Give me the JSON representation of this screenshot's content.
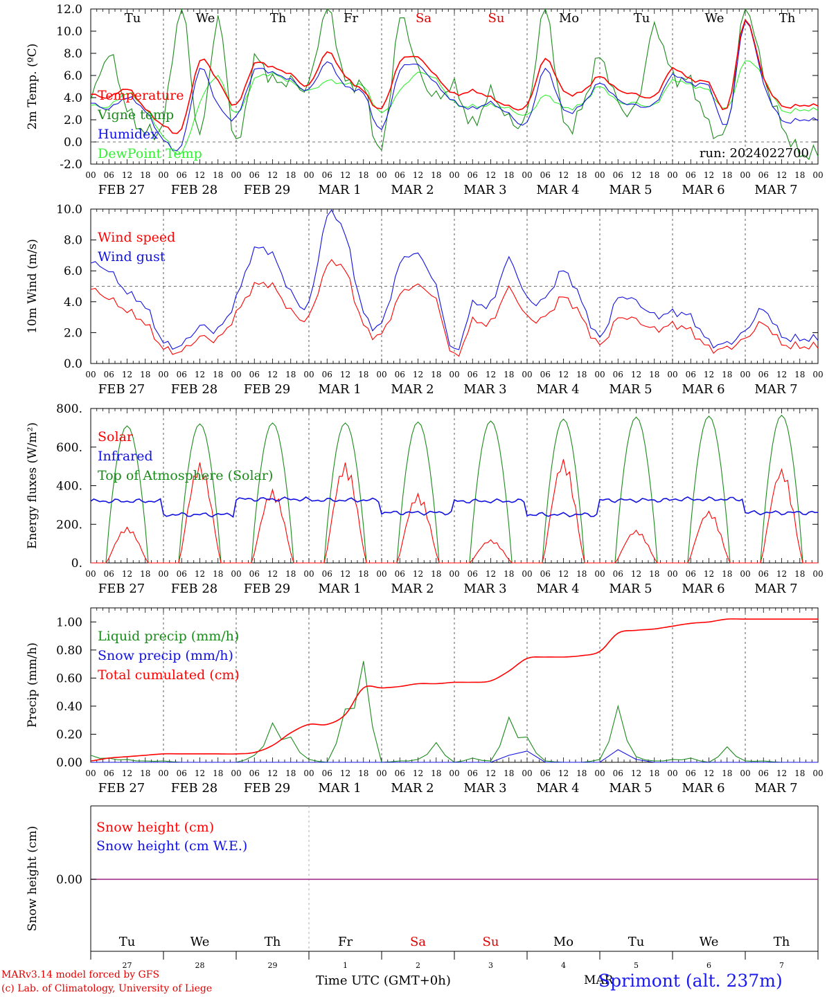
{
  "station_label": "Sprimont (alt. 237m)",
  "run_label": "run: 2024022700",
  "credit_line1": "MARv3.14 model forced by GFS",
  "credit_line2": "(c) Lab. of Climatology, University of Liege",
  "xaxis_title": "Time UTC (GMT+0h)",
  "footer_month": "MAR",
  "hour_ticks": [
    "00",
    "06",
    "12",
    "18"
  ],
  "day_labels": [
    "FEB 27",
    "FEB 28",
    "FEB 29",
    "MAR  1",
    "MAR  2",
    "MAR  3",
    "MAR  4",
    "MAR  5",
    "MAR  6",
    "MAR  7"
  ],
  "weekdays": [
    "Tu",
    "We",
    "Th",
    "Fr",
    "Sa",
    "Su",
    "Mo",
    "Tu",
    "We",
    "Th"
  ],
  "weekday_colors": [
    "#000000",
    "#000000",
    "#000000",
    "#000000",
    "#e00000",
    "#e00000",
    "#000000",
    "#000000",
    "#000000",
    "#000000"
  ],
  "day_numbers": [
    "27",
    "28",
    "29",
    "1",
    "2",
    "3",
    "4",
    "5",
    "6",
    "7"
  ],
  "colors": {
    "red": "#ff0000",
    "green": "#1a8a1a",
    "blue": "#1010e0",
    "lightgreen": "#33ee33",
    "purple": "#a02080"
  },
  "chart_data": [
    {
      "type": "line",
      "ylabel": "2m Temp. (ºC)",
      "ylim": [
        -2,
        12
      ],
      "yticks": [
        "-2.0",
        "0.0",
        "2.0",
        "4.0",
        "6.0",
        "8.0",
        "10.0",
        "12.0"
      ],
      "ytick_values": [
        -2,
        0,
        2,
        4,
        6,
        8,
        10,
        12
      ],
      "dashed_ref": 0,
      "x_hours": [
        0,
        6,
        12,
        18,
        24,
        30,
        36,
        42,
        48,
        54,
        60,
        66,
        72,
        78,
        84,
        90,
        96,
        102,
        108,
        114,
        120,
        126,
        132,
        138,
        144,
        150,
        156,
        162,
        168,
        174,
        180,
        186,
        192,
        198,
        204,
        210,
        216,
        222,
        228,
        234,
        240
      ],
      "series": [
        {
          "name": "Temperature",
          "color": "red",
          "values": [
            4.3,
            4.0,
            4.8,
            3.0,
            1.5,
            1.2,
            7.3,
            5.5,
            3.3,
            7.0,
            6.7,
            6.1,
            5.1,
            8.1,
            5.9,
            4.6,
            3.0,
            7.2,
            7.6,
            5.9,
            4.3,
            4.6,
            4.0,
            3.2,
            3.3,
            7.5,
            4.6,
            4.5,
            5.9,
            4.7,
            4.3,
            4.1,
            6.6,
            5.6,
            5.3,
            3.0,
            11.0,
            5.8,
            3.3,
            3.3,
            3.3
          ]
        },
        {
          "name": "Vigne temp",
          "color": "green",
          "values": [
            3.8,
            7.9,
            3.0,
            1.0,
            1.9,
            12.0,
            0.5,
            11.0,
            -0.3,
            7.3,
            5.5,
            5.5,
            5.2,
            12.0,
            5.5,
            5.0,
            -0.8,
            11.0,
            6.5,
            4.0,
            5.0,
            1.5,
            4.4,
            2.0,
            2.5,
            12.0,
            1.8,
            3.0,
            7.6,
            3.5,
            3.2,
            10.3,
            6.0,
            5.4,
            1.5,
            1.3,
            12.0,
            6.0,
            1.6,
            -1.0,
            -1.0
          ]
        },
        {
          "name": "Humidex",
          "color": "blue",
          "values": [
            3.5,
            3.0,
            4.0,
            2.8,
            0.2,
            -0.3,
            6.6,
            3.3,
            2.2,
            6.4,
            6.2,
            5.6,
            4.7,
            7.2,
            5.0,
            4.4,
            1.1,
            6.4,
            6.9,
            5.2,
            3.6,
            3.0,
            3.5,
            2.5,
            1.7,
            6.6,
            2.9,
            3.3,
            5.3,
            3.8,
            3.3,
            3.4,
            6.0,
            5.2,
            5.0,
            1.5,
            10.9,
            5.3,
            2.0,
            2.0,
            2.0
          ]
        },
        {
          "name": "DewPoint Temp",
          "color": "lightgreen",
          "values": [
            3.3,
            3.2,
            4.4,
            3.0,
            0.5,
            -1.0,
            3.5,
            5.9,
            2.5,
            5.6,
            6.1,
            5.4,
            4.6,
            5.5,
            5.2,
            5.0,
            2.6,
            4.6,
            6.2,
            5.6,
            3.5,
            3.2,
            3.3,
            3.0,
            2.4,
            4.2,
            3.1,
            3.4,
            5.0,
            3.6,
            3.5,
            3.3,
            5.5,
            5.1,
            4.6,
            3.0,
            7.3,
            5.8,
            2.9,
            2.9,
            2.9
          ]
        }
      ]
    },
    {
      "type": "line",
      "ylabel": "10m Wind (m/s)",
      "ylim": [
        0,
        10
      ],
      "yticks": [
        "0.0",
        "2.0",
        "4.0",
        "6.0",
        "8.0",
        "10.0"
      ],
      "ytick_values": [
        0,
        2,
        4,
        6,
        8,
        10
      ],
      "dashed_ref": 5,
      "x_hours": [
        0,
        6,
        12,
        18,
        24,
        30,
        36,
        42,
        48,
        54,
        60,
        66,
        72,
        78,
        84,
        90,
        96,
        102,
        108,
        114,
        120,
        126,
        132,
        138,
        144,
        150,
        156,
        162,
        168,
        174,
        180,
        186,
        192,
        198,
        204,
        210,
        216,
        222,
        228,
        234,
        240
      ],
      "series": [
        {
          "name": "Wind speed",
          "color": "red",
          "values": [
            4.8,
            4.2,
            3.4,
            2.6,
            1.0,
            0.8,
            1.7,
            1.6,
            3.2,
            5.0,
            5.0,
            3.4,
            3.0,
            6.3,
            6.0,
            2.5,
            1.9,
            4.4,
            5.0,
            4.0,
            0.4,
            2.7,
            2.6,
            4.8,
            3.0,
            3.0,
            4.3,
            3.0,
            1.2,
            2.9,
            2.8,
            2.2,
            2.5,
            2.1,
            1.0,
            1.0,
            1.6,
            2.6,
            1.3,
            1.1,
            1.1
          ]
        },
        {
          "name": "Wind gust",
          "color": "blue",
          "values": [
            6.5,
            6.0,
            4.6,
            3.7,
            1.4,
            1.2,
            2.4,
            2.2,
            4.2,
            7.3,
            7.0,
            4.6,
            3.9,
            9.5,
            8.3,
            3.3,
            2.6,
            6.4,
            7.0,
            4.9,
            0.7,
            3.8,
            3.8,
            6.7,
            4.2,
            4.2,
            6.0,
            4.0,
            1.7,
            4.2,
            4.0,
            3.1,
            3.3,
            3.0,
            1.4,
            1.3,
            2.1,
            3.5,
            1.8,
            1.6,
            1.6
          ]
        }
      ]
    },
    {
      "type": "line",
      "ylabel": "Energy fluxes (W/m²)",
      "ylim": [
        0,
        800
      ],
      "yticks": [
        "0.",
        "200.",
        "400.",
        "600.",
        "800."
      ],
      "ytick_values": [
        0,
        200,
        400,
        600,
        800
      ],
      "days": 10,
      "toa_peaks": [
        710,
        720,
        725,
        725,
        730,
        735,
        745,
        755,
        760,
        765
      ],
      "solar_peaks": [
        185,
        520,
        380,
        520,
        360,
        120,
        540,
        170,
        270,
        490
      ],
      "infrared_mean": [
        320,
        250,
        330,
        325,
        260,
        320,
        250,
        325,
        330,
        260
      ],
      "series_names": [
        "Solar",
        "Infrared",
        "Top of Atmosphere (Solar)"
      ],
      "series_colors": [
        "red",
        "blue",
        "green"
      ]
    },
    {
      "type": "line",
      "ylabel": "Precip (mm/h)",
      "ylim": [
        0,
        1.1
      ],
      "yticks": [
        "0.00",
        "0.20",
        "0.40",
        "0.60",
        "0.80",
        "1.00"
      ],
      "ytick_values": [
        0,
        0.2,
        0.4,
        0.6,
        0.8,
        1.0
      ],
      "x_hours": [
        0,
        6,
        12,
        18,
        24,
        30,
        36,
        42,
        48,
        54,
        60,
        66,
        72,
        78,
        84,
        90,
        96,
        102,
        108,
        114,
        120,
        126,
        132,
        138,
        144,
        150,
        156,
        162,
        168,
        174,
        180,
        186,
        192,
        198,
        204,
        210,
        216,
        222,
        228,
        234,
        240
      ],
      "series": [
        {
          "name": "Liquid precip (mm/h)",
          "color": "green",
          "values": [
            0.05,
            0.03,
            0.02,
            0.01,
            0.01,
            0.0,
            0.0,
            0.0,
            0.0,
            0.05,
            0.28,
            0.18,
            0.02,
            0.0,
            0.38,
            0.72,
            0.0,
            0.01,
            0.02,
            0.14,
            0.0,
            0.03,
            0.01,
            0.32,
            0.18,
            0.01,
            0.0,
            0.0,
            0.02,
            0.4,
            0.04,
            0.01,
            0.02,
            0.03,
            0.0,
            0.11,
            0.01,
            0.01,
            0.0,
            0.0,
            0.0
          ]
        },
        {
          "name": "Snow precip (mm/h)",
          "color": "blue",
          "values": [
            0,
            0,
            0,
            0,
            0,
            0,
            0,
            0,
            0,
            0,
            0,
            0,
            0,
            0,
            0,
            0,
            0,
            0,
            0,
            0,
            0,
            0,
            0,
            0.05,
            0.08,
            0,
            0,
            0,
            0,
            0.09,
            0.02,
            0,
            0,
            0,
            0,
            0,
            0,
            0,
            0,
            0,
            0
          ]
        },
        {
          "name": "Total cumulated (cm)",
          "color": "red",
          "values": [
            0.01,
            0.03,
            0.04,
            0.05,
            0.06,
            0.06,
            0.06,
            0.06,
            0.06,
            0.07,
            0.12,
            0.21,
            0.27,
            0.27,
            0.34,
            0.53,
            0.53,
            0.54,
            0.56,
            0.56,
            0.57,
            0.57,
            0.58,
            0.65,
            0.74,
            0.75,
            0.75,
            0.76,
            0.79,
            0.92,
            0.94,
            0.95,
            0.97,
            0.99,
            1.0,
            1.02,
            1.02,
            1.02,
            1.02,
            1.02,
            1.02
          ]
        }
      ]
    },
    {
      "type": "line",
      "ylabel": "Snow height (cm)",
      "yticks": [
        "0.00"
      ],
      "series": [
        {
          "name": "Snow height (cm)",
          "color": "red",
          "values": [
            0,
            0
          ]
        },
        {
          "name": "Snow height (cm W.E.)",
          "color": "blue",
          "values": [
            0,
            0
          ]
        }
      ]
    }
  ]
}
